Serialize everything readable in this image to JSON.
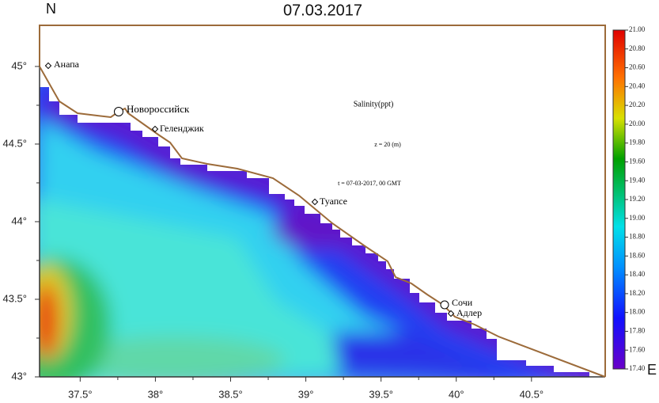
{
  "title": "07.03.2017",
  "north_label": "N",
  "east_label": "E",
  "annotations": {
    "variable": "Salinity(ppt)",
    "depth": "z = 20 (m)",
    "time": "t = 07-03-2017, 00 GMT"
  },
  "map": {
    "xlim": [
      37.23,
      40.99
    ],
    "ylim": [
      43,
      45.265
    ],
    "xticks": [
      {
        "value": 37.5,
        "label": "37.5°"
      },
      {
        "value": 38,
        "label": "38°"
      },
      {
        "value": 38.5,
        "label": "38.5°"
      },
      {
        "value": 39,
        "label": "39°"
      },
      {
        "value": 39.5,
        "label": "39.5°"
      },
      {
        "value": 40,
        "label": "40°"
      },
      {
        "value": 40.5,
        "label": "40.5°"
      }
    ],
    "yticks": [
      {
        "value": 43,
        "label": "43°"
      },
      {
        "value": 43.5,
        "label": "43.5°"
      },
      {
        "value": 44,
        "label": "44°"
      },
      {
        "value": 44.5,
        "label": "44.5°"
      },
      {
        "value": 45,
        "label": "45°"
      }
    ]
  },
  "cities": [
    {
      "label": "Анапа"
    },
    {
      "label": "Новороссийск"
    },
    {
      "label": "Геленджик"
    },
    {
      "label": "Туапсе"
    },
    {
      "label": "Сочи"
    },
    {
      "label": "Адлер"
    }
  ],
  "colorbar": {
    "range": [
      17.4,
      21.0
    ],
    "ticks": [
      {
        "value": 17.4,
        "label": "17.40"
      },
      {
        "value": 17.6,
        "label": "17.60"
      },
      {
        "value": 17.8,
        "label": "17.80"
      },
      {
        "value": 18.0,
        "label": "18.00"
      },
      {
        "value": 18.2,
        "label": "18.20"
      },
      {
        "value": 18.4,
        "label": "18.40"
      },
      {
        "value": 18.6,
        "label": "18.60"
      },
      {
        "value": 18.8,
        "label": "18.80"
      },
      {
        "value": 19.0,
        "label": "19.00"
      },
      {
        "value": 19.2,
        "label": "19.20"
      },
      {
        "value": 19.4,
        "label": "19.40"
      },
      {
        "value": 19.6,
        "label": "19.60"
      },
      {
        "value": 19.8,
        "label": "19.80"
      },
      {
        "value": 20.0,
        "label": "20.00"
      },
      {
        "value": 20.2,
        "label": "20.20"
      },
      {
        "value": 20.4,
        "label": "20.40"
      },
      {
        "value": 20.6,
        "label": "20.60"
      },
      {
        "value": 20.8,
        "label": "20.80"
      },
      {
        "value": 21.0,
        "label": "21.00"
      }
    ]
  }
}
